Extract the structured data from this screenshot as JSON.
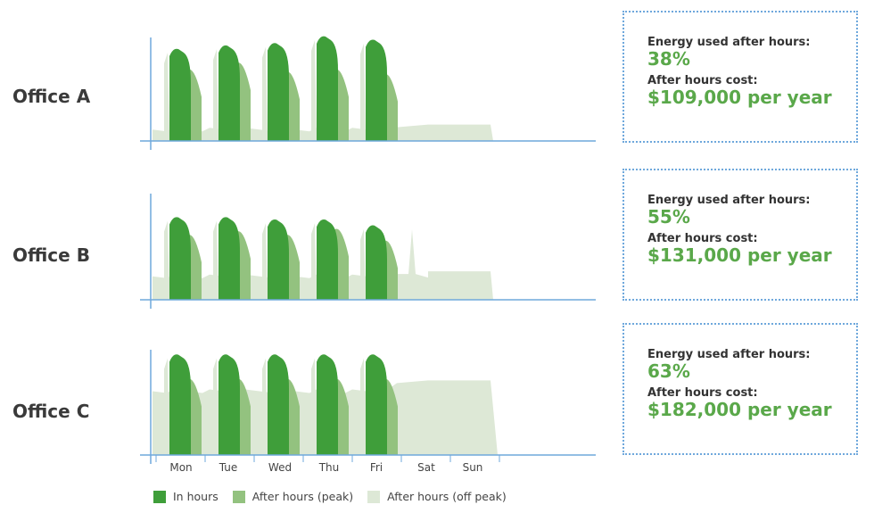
{
  "colors": {
    "in_hours": "#3f9e3a",
    "after_peak": "#93c27f",
    "after_offpeak": "#dde8d6",
    "axis": "#6fa8dc",
    "accent": "#5aa84a"
  },
  "offices": [
    {
      "name": "Office A",
      "energy_label": "Energy used after hours:",
      "energy_value": "38%",
      "cost_label": "After hours cost:",
      "cost_value": "$109,000 per year"
    },
    {
      "name": "Office B",
      "energy_label": "Energy used after hours:",
      "energy_value": "55%",
      "cost_label": "After hours cost:",
      "cost_value": "$131,000 per year"
    },
    {
      "name": "Office C",
      "energy_label": "Energy used after hours:",
      "energy_value": "63%",
      "cost_label": "After hours cost:",
      "cost_value": "$182,000 per year"
    }
  ],
  "legend": [
    {
      "label": "In hours",
      "color": "#3f9e3a"
    },
    {
      "label": "After hours (peak)",
      "color": "#93c27f"
    },
    {
      "label": "After hours (off peak)",
      "color": "#dde8d6"
    }
  ],
  "chart_data": {
    "type": "area",
    "categories": [
      "Mon",
      "Tue",
      "Wed",
      "Thu",
      "Fri",
      "Sat",
      "Sun"
    ],
    "series_names": [
      "In hours",
      "After hours (peak)",
      "After hours (off peak)"
    ],
    "units": "relative energy use (0-1)",
    "charts": [
      {
        "office": "Office A",
        "weekday_in_hours_peak": [
          0.82,
          0.85,
          0.87,
          0.93,
          0.9
        ],
        "weekday_after_peak_level": [
          0.62,
          0.68,
          0.6,
          0.62,
          0.58
        ],
        "offpeak_baseline_weekday": 0.1,
        "offpeak_baseline_weekend": 0.12,
        "weekend_spike": 0.0
      },
      {
        "office": "Office B",
        "weekday_in_hours_peak": [
          0.72,
          0.72,
          0.7,
          0.7,
          0.65
        ],
        "weekday_after_peak_level": [
          0.55,
          0.58,
          0.55,
          0.6,
          0.5
        ],
        "offpeak_baseline_weekday": 0.2,
        "offpeak_baseline_weekend": 0.22,
        "weekend_spike": 0.6
      },
      {
        "office": "Office C",
        "weekday_in_hours_peak": [
          0.88,
          0.88,
          0.88,
          0.88,
          0.88
        ],
        "weekday_after_peak_level": [
          0.65,
          0.65,
          0.65,
          0.65,
          0.65
        ],
        "offpeak_baseline_weekday": 0.55,
        "offpeak_baseline_weekend": 0.62,
        "weekend_spike": 0.0
      }
    ]
  }
}
